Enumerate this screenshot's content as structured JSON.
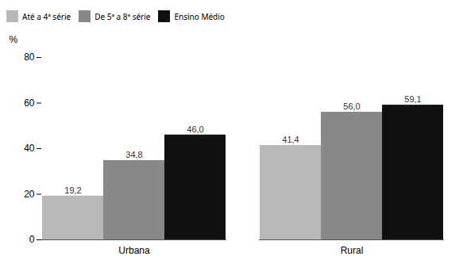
{
  "chart_data": {
    "type": "bar",
    "ylabel": "%",
    "categories": [
      "Urbana",
      "Rural"
    ],
    "series": [
      {
        "name": "Até a 4ª série",
        "color": "#b8b8b8",
        "values": [
          19.2,
          41.4
        ],
        "value_labels": [
          "19,2",
          "41,4"
        ]
      },
      {
        "name": "De 5ª a 8ª série",
        "color": "#888888",
        "values": [
          34.8,
          56.0
        ],
        "value_labels": [
          "34,8",
          "56,0"
        ]
      },
      {
        "name": "Ensino Médio",
        "color": "#111111",
        "values": [
          46.0,
          59.1
        ],
        "value_labels": [
          "46,0",
          "59,1"
        ]
      }
    ],
    "ylim": [
      0,
      80
    ],
    "yticks": [
      0,
      20,
      40,
      60,
      80
    ],
    "grid": false,
    "legend": "top",
    "data_labels": true
  }
}
